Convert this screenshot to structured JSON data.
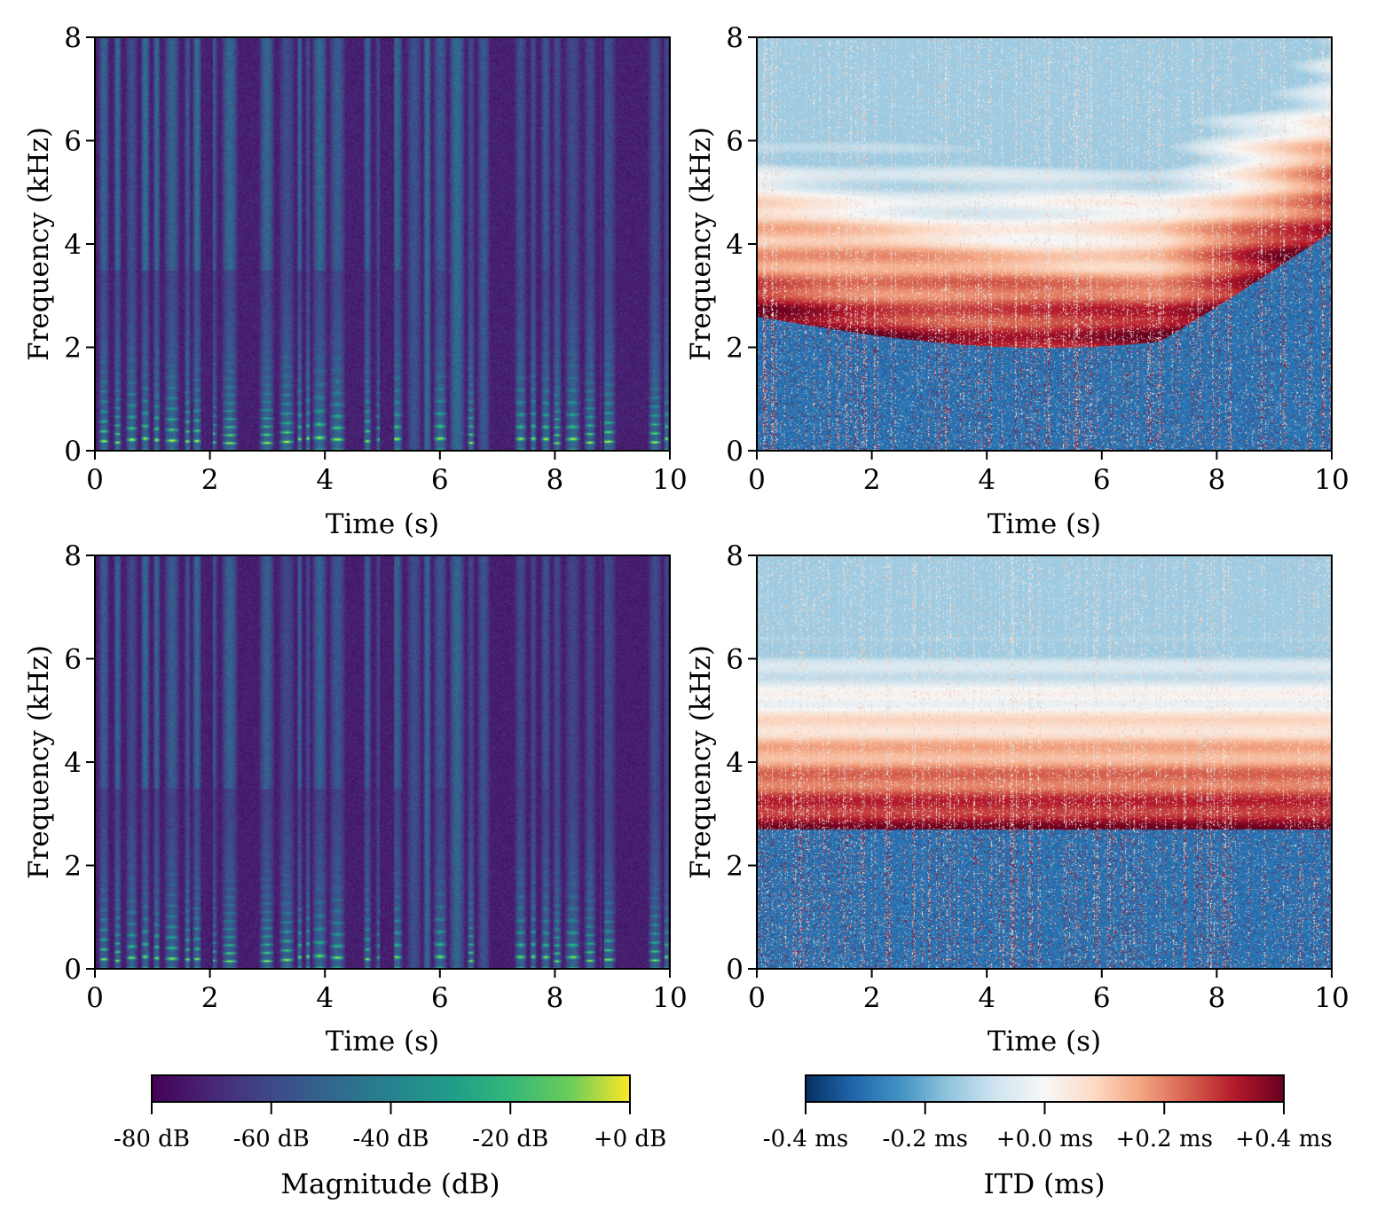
{
  "chart_data": {
    "type": "heatmap",
    "panels": [
      {
        "name": "magnitude-top",
        "variant": "mag-a",
        "colormap": "viridis",
        "xlabel": "Time (s)",
        "ylabel": "Frequency (kHz)",
        "xlim": [
          0,
          10
        ],
        "ylim": [
          0,
          8
        ],
        "xticks": [
          "0",
          "2",
          "4",
          "6",
          "8",
          "10"
        ],
        "yticks": [
          "0",
          "2",
          "4",
          "6",
          "8"
        ]
      },
      {
        "name": "itd-top",
        "variant": "itd-moving",
        "colormap": "RdBu_r",
        "xlabel": "Time (s)",
        "ylabel": "Frequency (kHz)",
        "xlim": [
          0,
          10
        ],
        "ylim": [
          0,
          8
        ],
        "xticks": [
          "0",
          "2",
          "4",
          "6",
          "8",
          "10"
        ],
        "yticks": [
          "0",
          "2",
          "4",
          "6",
          "8"
        ]
      },
      {
        "name": "magnitude-bottom",
        "variant": "mag-b",
        "colormap": "viridis",
        "xlabel": "Time (s)",
        "ylabel": "Frequency (kHz)",
        "xlim": [
          0,
          10
        ],
        "ylim": [
          0,
          8
        ],
        "xticks": [
          "0",
          "2",
          "4",
          "6",
          "8",
          "10"
        ],
        "yticks": [
          "0",
          "2",
          "4",
          "6",
          "8"
        ]
      },
      {
        "name": "itd-bottom",
        "variant": "itd-static",
        "colormap": "RdBu_r",
        "xlabel": "Time (s)",
        "ylabel": "Frequency (kHz)",
        "xlim": [
          0,
          10
        ],
        "ylim": [
          0,
          8
        ],
        "xticks": [
          "0",
          "2",
          "4",
          "6",
          "8",
          "10"
        ],
        "yticks": [
          "0",
          "2",
          "4",
          "6",
          "8"
        ]
      }
    ],
    "colorbars": [
      {
        "name": "magnitude",
        "colormap": "viridis",
        "label": "Magnitude (dB)",
        "range": [
          -80,
          0
        ],
        "ticks": [
          "-80 dB",
          "-60 dB",
          "-40 dB",
          "-20 dB",
          "+0 dB"
        ]
      },
      {
        "name": "itd",
        "colormap": "RdBu_r",
        "label": "ITD (ms)",
        "range": [
          -0.4,
          0.4
        ],
        "ticks": [
          "-0.4 ms",
          "-0.2 ms",
          "+0.0 ms",
          "+0.2 ms",
          "+0.4 ms"
        ]
      }
    ]
  }
}
